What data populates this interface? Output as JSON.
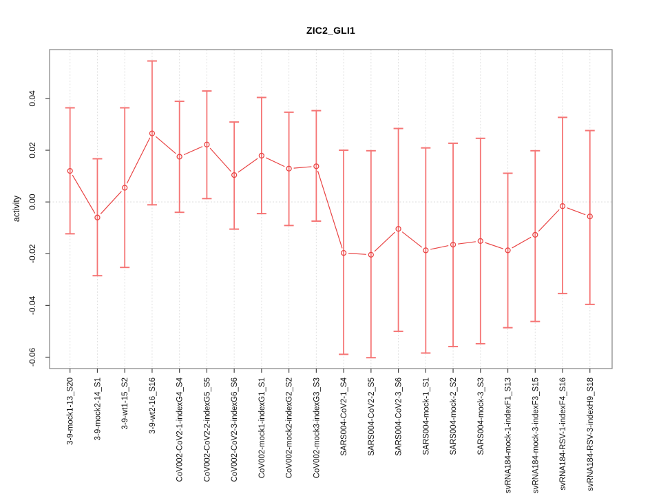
{
  "chart_data": {
    "type": "line",
    "subtype": "error-bar-point-plot",
    "title": "ZIC2_GLI1",
    "ylabel": "activity",
    "xlabel": "",
    "legend": "none",
    "grid": "vertical dotted gridline per category; dotted horizontal line at y=0",
    "marker": "open-circle",
    "categories": [
      "3-9-mock1-13_S20",
      "3-9-mock2-14_S1",
      "3-9-wt1-15_S2",
      "3-9-wt2-16_S16",
      "CoV002-CoV2-1-indexG4_S4",
      "CoV002-CoV2-2-indexG5_S5",
      "CoV002-CoV2-3-indexG6_S6",
      "CoV002-mock1-indexG1_S1",
      "CoV002-mock2-indexG2_S2",
      "CoV002-mock3-indexG3_S3",
      "SARS004-CoV2-1_S4",
      "SARS004-CoV2-2_S5",
      "SARS004-CoV2-3_S6",
      "SARS004-mock-1_S1",
      "SARS004-mock-2_S2",
      "SARS004-mock-3_S3",
      "svRNA184-mock-1-indexF1_S13",
      "svRNA184-mock-3-indexF3_S15",
      "svRNA184-RSV-1-indexF4_S16",
      "svRNA184-RSV-3-indexH9_S18"
    ],
    "series": [
      {
        "name": "activity",
        "values": [
          0.012,
          -0.006,
          0.0055,
          0.0265,
          0.0175,
          0.0222,
          0.0104,
          0.0179,
          0.0129,
          0.0138,
          -0.0197,
          -0.0204,
          -0.0104,
          -0.0187,
          -0.0165,
          -0.0151,
          -0.0187,
          -0.0127,
          -0.0016,
          -0.0056
        ],
        "lower": [
          -0.0123,
          -0.0285,
          -0.0253,
          -0.0011,
          -0.004,
          0.0013,
          -0.0105,
          -0.0045,
          -0.0091,
          -0.0074,
          -0.0589,
          -0.0602,
          -0.05,
          -0.0584,
          -0.0559,
          -0.0548,
          -0.0486,
          -0.0462,
          -0.0354,
          -0.0396
        ],
        "upper": [
          0.0364,
          0.0167,
          0.0364,
          0.0545,
          0.0389,
          0.0429,
          0.0309,
          0.0404,
          0.0347,
          0.0353,
          0.02,
          0.0198,
          0.0284,
          0.0209,
          0.0227,
          0.0246,
          0.0111,
          0.0198,
          0.0327,
          0.0276
        ]
      }
    ],
    "ytick_labels": [
      "0.04",
      "0.02",
      "0.00",
      "-0.02",
      "-0.04",
      "-0.06"
    ],
    "ytick_values": [
      0.04,
      0.02,
      0.0,
      -0.02,
      -0.04,
      -0.06
    ],
    "ylim": [
      -0.0644,
      0.0589
    ],
    "colors": {
      "point_line": "#e94444",
      "error_bar": "#f57575",
      "gridline": "#e0e0e0",
      "zero_line": "#d9d9d9",
      "box": "#8c8c8c",
      "tick": "#444444",
      "text": "#111111"
    }
  }
}
